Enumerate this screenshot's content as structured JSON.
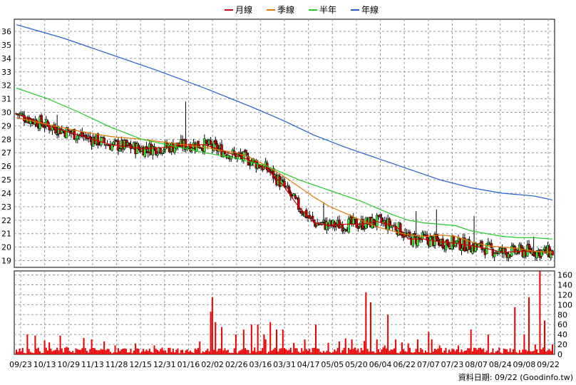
{
  "legend": [
    {
      "label": "月線",
      "color": "#cc0000"
    },
    {
      "label": "季線",
      "color": "#e07a00"
    },
    {
      "label": "半年",
      "color": "#22cc22"
    },
    {
      "label": "年線",
      "color": "#1f5fd6"
    }
  ],
  "source_note": "資料日期: 09/22 (Goodinfo.tw)",
  "colors": {
    "up": "#33ee33",
    "down": "#cc0000",
    "grid": "#999999",
    "volume": "#ee0000"
  },
  "chart_data": [
    {
      "type": "candlestick",
      "ylim": [
        18.5,
        36.9
      ],
      "y_ticks": [
        19,
        20,
        21,
        22,
        23,
        24,
        25,
        26,
        27,
        28,
        29,
        30,
        31,
        32,
        33,
        34,
        35,
        36
      ],
      "x_tick_labels": [
        "09/23",
        "10/13",
        "10/29",
        "11/13",
        "11/28",
        "12/15",
        "12/31",
        "01/16",
        "02/02",
        "02/26",
        "03/16",
        "03/31",
        "04/17",
        "05/05",
        "05/20",
        "06/04",
        "06/22",
        "07/07",
        "07/23",
        "08/07",
        "08/24",
        "09/08",
        "09/22"
      ],
      "grid": true,
      "legend_position": "top-center",
      "series": [
        {
          "name": "月線",
          "points": [
            [
              0,
              29.9
            ],
            [
              20,
              29.0
            ],
            [
              40,
              28.3
            ],
            [
              60,
              27.6
            ],
            [
              80,
              27.3
            ],
            [
              95,
              27.4
            ],
            [
              110,
              27.6
            ],
            [
              120,
              27.6
            ],
            [
              135,
              27.0
            ],
            [
              150,
              26.4
            ],
            [
              160,
              25.8
            ],
            [
              170,
              24.6
            ],
            [
              180,
              23.0
            ],
            [
              190,
              21.8
            ],
            [
              200,
              21.6
            ],
            [
              210,
              21.7
            ],
            [
              220,
              21.7
            ],
            [
              230,
              21.9
            ],
            [
              240,
              21.6
            ],
            [
              245,
              21.3
            ],
            [
              250,
              20.6
            ],
            [
              260,
              20.6
            ],
            [
              270,
              20.4
            ],
            [
              280,
              20.3
            ],
            [
              290,
              20.1
            ],
            [
              300,
              19.9
            ],
            [
              310,
              19.6
            ],
            [
              320,
              19.7
            ],
            [
              330,
              19.7
            ],
            [
              342,
              19.6
            ]
          ]
        },
        {
          "name": "季線",
          "points": [
            [
              0,
              29.6
            ],
            [
              20,
              29.1
            ],
            [
              40,
              28.6
            ],
            [
              60,
              28.2
            ],
            [
              80,
              28.0
            ],
            [
              100,
              27.7
            ],
            [
              120,
              27.4
            ],
            [
              140,
              27.0
            ],
            [
              150,
              26.6
            ],
            [
              160,
              26.0
            ],
            [
              170,
              25.3
            ],
            [
              180,
              24.5
            ],
            [
              190,
              23.7
            ],
            [
              200,
              23.0
            ],
            [
              210,
              22.5
            ],
            [
              220,
              22.0
            ],
            [
              230,
              21.5
            ],
            [
              240,
              21.2
            ],
            [
              250,
              20.9
            ],
            [
              260,
              20.8
            ],
            [
              270,
              20.9
            ],
            [
              280,
              20.8
            ],
            [
              290,
              20.4
            ],
            [
              300,
              20.1
            ],
            [
              310,
              20.0
            ],
            [
              320,
              19.9
            ],
            [
              330,
              19.7
            ],
            [
              342,
              19.6
            ]
          ]
        },
        {
          "name": "半年",
          "points": [
            [
              0,
              31.8
            ],
            [
              20,
              31.0
            ],
            [
              40,
              30.0
            ],
            [
              60,
              28.9
            ],
            [
              80,
              28.0
            ],
            [
              100,
              27.5
            ],
            [
              120,
              27.0
            ],
            [
              140,
              26.6
            ],
            [
              160,
              26.0
            ],
            [
              170,
              25.5
            ],
            [
              180,
              25.0
            ],
            [
              200,
              24.2
            ],
            [
              220,
              23.4
            ],
            [
              230,
              22.9
            ],
            [
              240,
              22.4
            ],
            [
              250,
              22.0
            ],
            [
              260,
              21.8
            ],
            [
              270,
              21.7
            ],
            [
              280,
              21.6
            ],
            [
              290,
              21.2
            ],
            [
              300,
              21.0
            ],
            [
              310,
              20.8
            ],
            [
              320,
              20.7
            ],
            [
              330,
              20.7
            ],
            [
              342,
              20.6
            ]
          ]
        },
        {
          "name": "年線",
          "points": [
            [
              0,
              36.5
            ],
            [
              30,
              35.5
            ],
            [
              60,
              34.3
            ],
            [
              90,
              33.1
            ],
            [
              120,
              31.8
            ],
            [
              150,
              30.4
            ],
            [
              170,
              29.4
            ],
            [
              190,
              28.3
            ],
            [
              210,
              27.4
            ],
            [
              230,
              26.6
            ],
            [
              250,
              25.8
            ],
            [
              270,
              25.0
            ],
            [
              290,
              24.4
            ],
            [
              310,
              24.0
            ],
            [
              330,
              23.8
            ],
            [
              342,
              23.5
            ]
          ]
        }
      ]
    },
    {
      "type": "bar",
      "ylim": [
        0,
        168
      ],
      "y_ticks": [
        0,
        20,
        40,
        60,
        80,
        100,
        120,
        140,
        160
      ],
      "series": [
        {
          "name": "",
          "peaks": [
            [
              7,
              40
            ],
            [
              12,
              38
            ],
            [
              18,
              28
            ],
            [
              21,
              24
            ],
            [
              28,
              38
            ],
            [
              32,
              15
            ],
            [
              38,
              12
            ],
            [
              43,
              33
            ],
            [
              48,
              30
            ],
            [
              56,
              26
            ],
            [
              63,
              18
            ],
            [
              69,
              12
            ],
            [
              76,
              22
            ],
            [
              88,
              18
            ],
            [
              94,
              8
            ],
            [
              103,
              12
            ],
            [
              117,
              26
            ],
            [
              124,
              86
            ],
            [
              125,
              115
            ],
            [
              127,
              65
            ],
            [
              131,
              55
            ],
            [
              140,
              40
            ],
            [
              145,
              50
            ],
            [
              150,
              60
            ],
            [
              154,
              60
            ],
            [
              158,
              40
            ],
            [
              159,
              30
            ],
            [
              162,
              65
            ],
            [
              166,
              50
            ],
            [
              170,
              50
            ],
            [
              177,
              23
            ],
            [
              184,
              30
            ],
            [
              191,
              60
            ],
            [
              199,
              23
            ],
            [
              206,
              26
            ],
            [
              210,
              32
            ],
            [
              214,
              30
            ],
            [
              222,
              27
            ],
            [
              223,
              125
            ],
            [
              226,
              105
            ],
            [
              230,
              30
            ],
            [
              235,
              18
            ],
            [
              237,
              80
            ],
            [
              242,
              30
            ],
            [
              246,
              24
            ],
            [
              250,
              22
            ],
            [
              256,
              30
            ],
            [
              263,
              45
            ],
            [
              265,
              30
            ],
            [
              270,
              18
            ],
            [
              282,
              18
            ],
            [
              290,
              50
            ],
            [
              298,
              12
            ],
            [
              301,
              40
            ],
            [
              308,
              14
            ],
            [
              315,
              12
            ],
            [
              318,
              95
            ],
            [
              324,
              40
            ],
            [
              327,
              115
            ],
            [
              331,
              20
            ],
            [
              334,
              168
            ],
            [
              337,
              68
            ],
            [
              342,
              20
            ]
          ]
        }
      ]
    }
  ]
}
